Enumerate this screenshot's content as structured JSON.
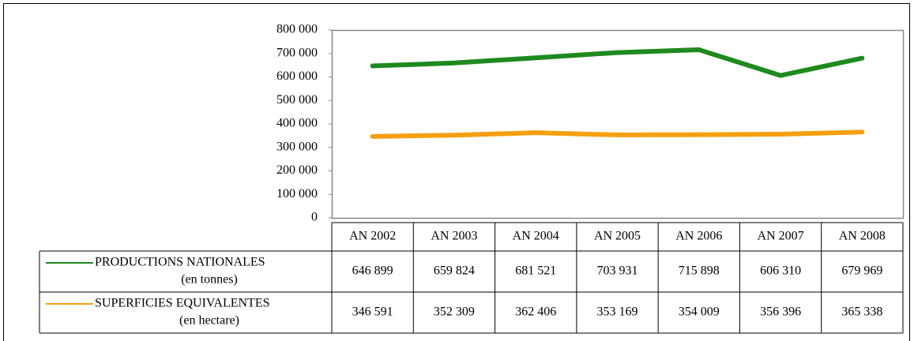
{
  "chart_data": {
    "type": "line",
    "categories": [
      "AN 2002",
      "AN 2003",
      "AN 2004",
      "AN 2005",
      "AN 2006",
      "AN 2007",
      "AN 2008"
    ],
    "series": [
      {
        "name": "PRODUCTIONS NATIONALES",
        "unit": "(en tonnes)",
        "color": "#1e8a1e",
        "values": [
          646899,
          659824,
          681521,
          703931,
          715898,
          606310,
          679969
        ],
        "value_labels": [
          "646 899",
          "659 824",
          "681 521",
          "703 931",
          "715 898",
          "606 310",
          "679 969"
        ]
      },
      {
        "name": "SUPERFICIES EQUIVALENTES",
        "unit": "(en hectare)",
        "color": "#f5a010",
        "values": [
          346591,
          352309,
          362406,
          353169,
          354009,
          356396,
          365338
        ],
        "value_labels": [
          "346 591",
          "352 309",
          "362 406",
          "353 169",
          "354 009",
          "356 396",
          "365 338"
        ]
      }
    ],
    "ylim": [
      0,
      800000
    ],
    "yticks": [
      0,
      {
        "value": 100000,
        "label": "100 000"
      },
      {
        "value": 200000,
        "label": "200 000"
      },
      {
        "value": 300000,
        "label": "300 000"
      },
      {
        "value": 400000,
        "label": "400 000"
      },
      {
        "value": 500000,
        "label": "500 000"
      },
      {
        "value": 600000,
        "label": "600 000"
      },
      {
        "value": 700000,
        "label": "700 000"
      },
      {
        "value": 800000,
        "label": "800 000"
      }
    ],
    "grid": false
  }
}
